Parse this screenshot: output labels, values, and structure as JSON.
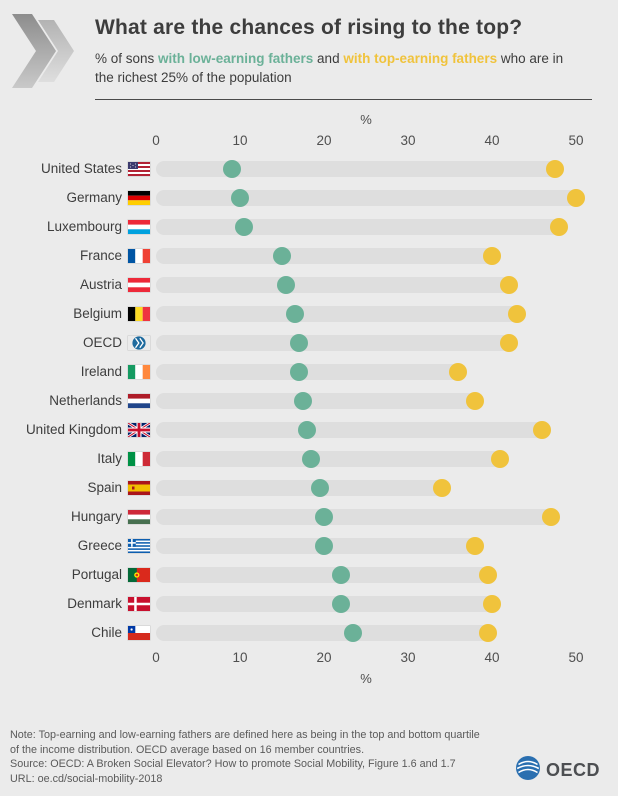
{
  "header": {
    "title": "What are the chances of rising to the top?",
    "subtitle_prefix": "% of sons ",
    "subtitle_green": "with low-earning fathers",
    "subtitle_mid": " and ",
    "subtitle_yellow": "with top-earning fathers",
    "subtitle_suffix": " who are in the richest 25% of the population"
  },
  "chart_data": {
    "type": "dumbbell",
    "title": "What are the chances of rising to the top?",
    "xlabel": "%",
    "axis_label": "%",
    "x_ticks": [
      0,
      10,
      20,
      30,
      40,
      50
    ],
    "xlim": [
      0,
      52
    ],
    "legend_position": "in-subtitle",
    "series": [
      {
        "name": "with low-earning fathers",
        "color": "#6bb198"
      },
      {
        "name": "with top-earning fathers",
        "color": "#f0c33c"
      }
    ],
    "rows": [
      {
        "country": "United States",
        "flag": "us",
        "low": 9,
        "top": 47.5
      },
      {
        "country": "Germany",
        "flag": "de",
        "low": 10,
        "top": 50
      },
      {
        "country": "Luxembourg",
        "flag": "lu",
        "low": 10.5,
        "top": 48
      },
      {
        "country": "France",
        "flag": "fr",
        "low": 15,
        "top": 40
      },
      {
        "country": "Austria",
        "flag": "at",
        "low": 15.5,
        "top": 42
      },
      {
        "country": "Belgium",
        "flag": "be",
        "low": 16.5,
        "top": 43
      },
      {
        "country": "OECD",
        "flag": "oecd",
        "low": 17,
        "top": 42
      },
      {
        "country": "Ireland",
        "flag": "ie",
        "low": 17,
        "top": 36
      },
      {
        "country": "Netherlands",
        "flag": "nl",
        "low": 17.5,
        "top": 38
      },
      {
        "country": "United Kingdom",
        "flag": "gb",
        "low": 18,
        "top": 46
      },
      {
        "country": "Italy",
        "flag": "it",
        "low": 18.5,
        "top": 41
      },
      {
        "country": "Spain",
        "flag": "es",
        "low": 19.5,
        "top": 34
      },
      {
        "country": "Hungary",
        "flag": "hu",
        "low": 20,
        "top": 47
      },
      {
        "country": "Greece",
        "flag": "gr",
        "low": 20,
        "top": 38
      },
      {
        "country": "Portugal",
        "flag": "pt",
        "low": 22,
        "top": 39.5
      },
      {
        "country": "Denmark",
        "flag": "dk",
        "low": 22,
        "top": 40
      },
      {
        "country": "Chile",
        "flag": "cl",
        "low": 23.5,
        "top": 39.5
      }
    ],
    "bar_color": "#dedede"
  },
  "footer": {
    "note_line1": "Note: Top-earning and low-earning fathers are defined here as being in the top and bottom quartile",
    "note_line2": "of the income distribution. OECD average based on 16 member countries.",
    "source": "Source: OECD: A Broken Social Elevator? How to promote Social Mobility, Figure 1.6 and 1.7",
    "url": "URL: oe.cd/social-mobility-2018",
    "logo_text": "OECD"
  }
}
